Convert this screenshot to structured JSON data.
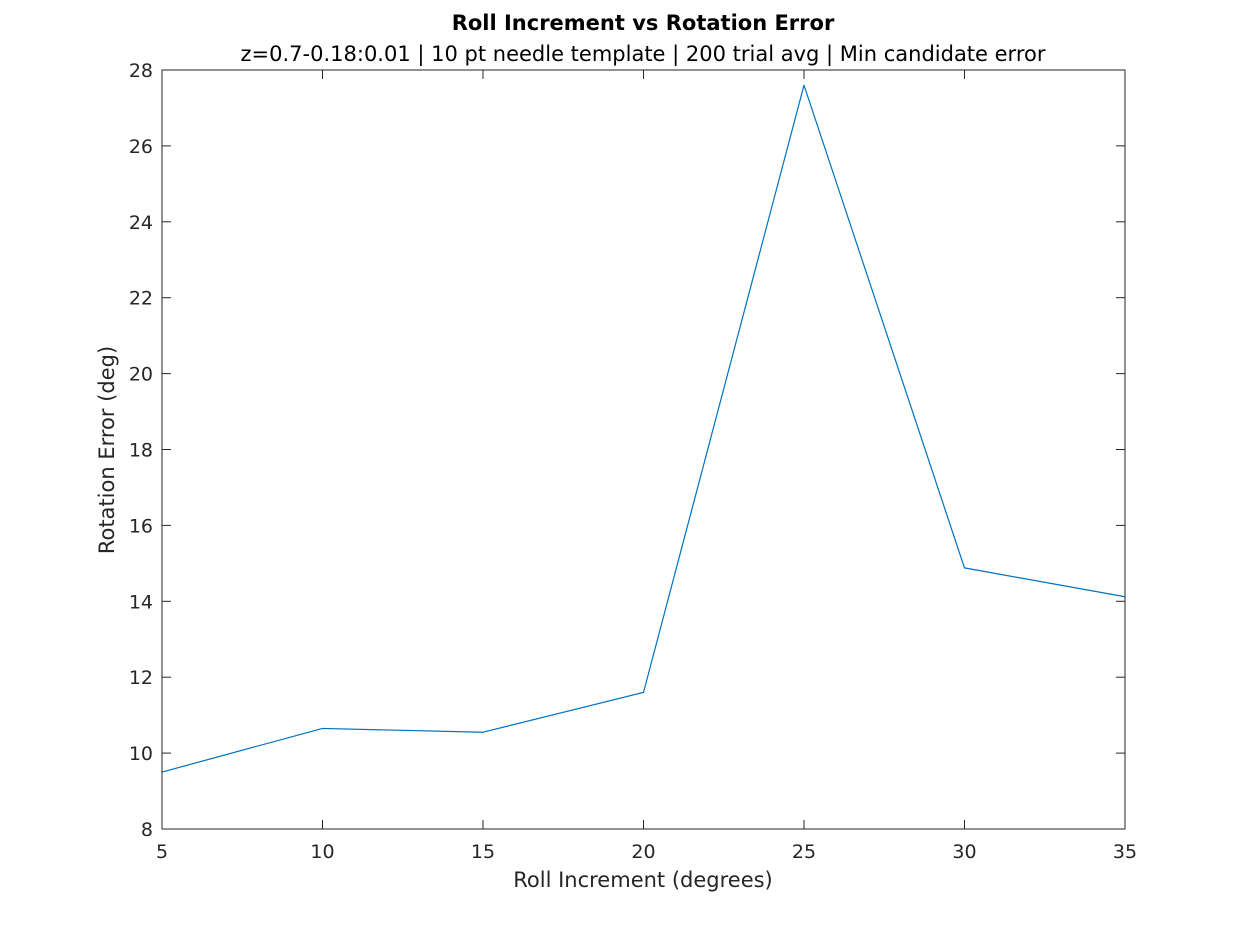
{
  "chart_data": {
    "type": "line",
    "title": "Roll Increment vs Rotation Error",
    "subtitle": "z=0.7-0.18:0.01 | 10 pt needle template | 200 trial avg | Min candidate error",
    "xlabel": "Roll Increment (degrees)",
    "ylabel": "Rotation Error (deg)",
    "xlim": [
      5,
      35
    ],
    "ylim": [
      8,
      28
    ],
    "xticks": [
      5,
      10,
      15,
      20,
      25,
      30,
      35
    ],
    "yticks": [
      8,
      10,
      12,
      14,
      16,
      18,
      20,
      22,
      24,
      26,
      28
    ],
    "grid": false,
    "box": true,
    "series": [
      {
        "color": "#0072bd",
        "x": [
          5,
          10,
          15,
          20,
          25,
          30,
          35
        ],
        "y": [
          9.5,
          10.65,
          10.55,
          11.6,
          27.6,
          14.88,
          14.12
        ]
      }
    ]
  }
}
